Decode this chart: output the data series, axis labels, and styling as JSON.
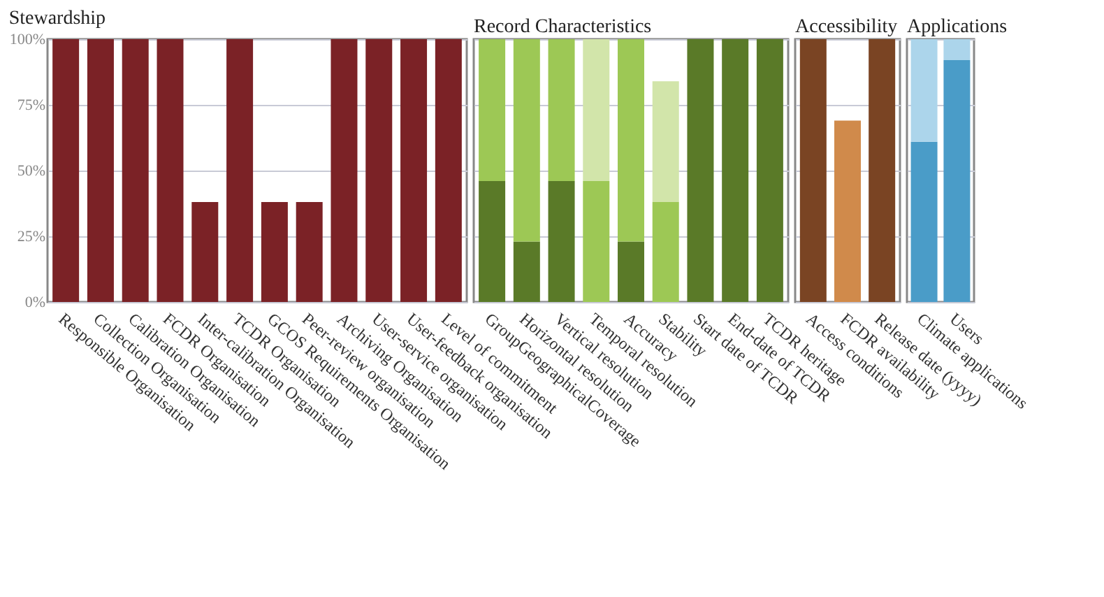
{
  "chart_data": [
    {
      "type": "bar",
      "title": "Stewardship",
      "categories": [
        "Responsible Organisation",
        "Collection Organisation",
        "Calibration Organisation",
        "FCDR Organisation",
        "Inter-calibration Organisation",
        "TCDR Organisation",
        "GCOS Requirements Organisation",
        "Peer-review organisation",
        "Archiving Organisation",
        "User-service organisation",
        "User-feedback organisation",
        "Level of commitment"
      ],
      "values": [
        100,
        100,
        100,
        100,
        38,
        100,
        38,
        38,
        100,
        100,
        100,
        100
      ],
      "color": "#7b2226",
      "ylim": [
        0,
        100
      ],
      "yticks": [
        {
          "value": 0,
          "label": "0%"
        },
        {
          "value": 25,
          "label": "25%"
        },
        {
          "value": 50,
          "label": "50%"
        },
        {
          "value": 75,
          "label": "75%"
        },
        {
          "value": 100,
          "label": "100%"
        }
      ],
      "grid": "y"
    },
    {
      "type": "bar",
      "title": "Record Characteristics",
      "categories": [
        "GroupGeographicalCoverage",
        "Horizontal resolution",
        "Vertical resolution",
        "Temporal resolution",
        "Accuracy",
        "Stability",
        "Start date of TCDR",
        "End-date of TCDR",
        "TCDR heritage"
      ],
      "series": [
        {
          "color": "#5a7a28",
          "values": [
            46,
            23,
            46,
            null,
            23,
            null,
            100,
            100,
            100
          ]
        },
        {
          "color": "#9dc855",
          "values": [
            54,
            77,
            54,
            46,
            77,
            38,
            null,
            null,
            null
          ]
        },
        {
          "color": "#d2e5aa",
          "values": [
            null,
            null,
            null,
            54,
            null,
            46,
            null,
            null,
            null
          ]
        }
      ],
      "stacked": true,
      "ylim": [
        0,
        100
      ],
      "yticks": [
        0,
        25,
        50,
        75,
        100
      ],
      "grid": "y",
      "tick_labels": "x"
    },
    {
      "type": "bar",
      "title": "Accessibility",
      "categories": [
        "Access conditions",
        "FCDR availability",
        "Release date (yyyy)"
      ],
      "values": [
        100,
        69,
        100
      ],
      "colors": [
        "#7a4423",
        "#d08a4b",
        "#7a4423"
      ],
      "ylim": [
        0,
        100
      ],
      "yticks": [
        0,
        25,
        50,
        75,
        100
      ],
      "grid": "y",
      "tick_labels": "x"
    },
    {
      "type": "bar",
      "title": "Applications",
      "categories": [
        "Climate applications",
        "Users"
      ],
      "series": [
        {
          "color": "#4a9cc8",
          "values": [
            61,
            92
          ]
        },
        {
          "color": "#acd5eb",
          "values": [
            39,
            8
          ]
        }
      ],
      "stacked": true,
      "ylim": [
        0,
        100
      ],
      "yticks": [
        0,
        25,
        50,
        75,
        100
      ],
      "grid": "y",
      "tick_labels": "x"
    }
  ]
}
